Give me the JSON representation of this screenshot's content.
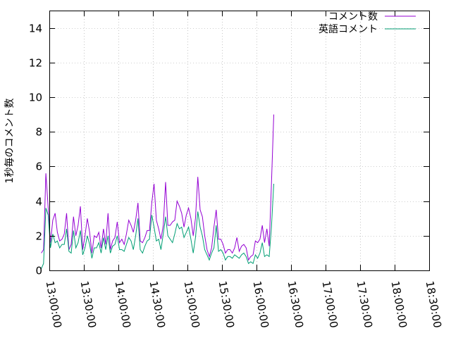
{
  "chart_data": {
    "type": "line",
    "ylabel": "1秒毎のコメント数",
    "xlabel": "",
    "title": "",
    "ylim": [
      0,
      15
    ],
    "yticks": [
      0,
      2,
      4,
      6,
      8,
      10,
      12,
      14
    ],
    "xlim": [
      "13:00:00",
      "18:30:00"
    ],
    "xticks": [
      "13:00:00",
      "13:30:00",
      "14:00:00",
      "14:30:00",
      "15:00:00",
      "15:30:00",
      "16:00:00",
      "16:30:00",
      "17:00:00",
      "17:30:00",
      "18:00:00",
      "18:30:00"
    ],
    "legend_position": "top-right",
    "series": [
      {
        "name": "コメント数",
        "color": "#9400d3",
        "points": [
          [
            "12:53:00",
            1.0
          ],
          [
            "12:55:00",
            1.2
          ],
          [
            "12:57:00",
            5.6
          ],
          [
            "12:59:00",
            3.6
          ],
          [
            "13:01:00",
            1.6
          ],
          [
            "13:03:00",
            2.9
          ],
          [
            "13:05:00",
            3.3
          ],
          [
            "13:07:00",
            2.2
          ],
          [
            "13:09:00",
            1.7
          ],
          [
            "13:11:00",
            1.8
          ],
          [
            "13:13:00",
            2.1
          ],
          [
            "13:15:00",
            3.3
          ],
          [
            "13:17:00",
            1.2
          ],
          [
            "13:19:00",
            1.5
          ],
          [
            "13:21:00",
            3.1
          ],
          [
            "13:23:00",
            2.0
          ],
          [
            "13:25:00",
            2.6
          ],
          [
            "13:27:00",
            3.7
          ],
          [
            "13:29:00",
            1.2
          ],
          [
            "13:31:00",
            2.0
          ],
          [
            "13:33:00",
            3.0
          ],
          [
            "13:35:00",
            2.2
          ],
          [
            "13:37:00",
            1.0
          ],
          [
            "13:39:00",
            2.0
          ],
          [
            "13:41:00",
            1.9
          ],
          [
            "13:43:00",
            2.2
          ],
          [
            "13:45:00",
            1.3
          ],
          [
            "13:47:00",
            2.4
          ],
          [
            "13:49:00",
            1.5
          ],
          [
            "13:51:00",
            3.3
          ],
          [
            "13:53:00",
            1.2
          ],
          [
            "13:55:00",
            1.7
          ],
          [
            "13:57:00",
            1.9
          ],
          [
            "13:59:00",
            2.8
          ],
          [
            "14:01:00",
            1.6
          ],
          [
            "14:03:00",
            1.8
          ],
          [
            "14:05:00",
            1.5
          ],
          [
            "14:07:00",
            2.1
          ],
          [
            "14:09:00",
            2.9
          ],
          [
            "14:11:00",
            2.6
          ],
          [
            "14:13:00",
            2.2
          ],
          [
            "14:15:00",
            2.9
          ],
          [
            "14:17:00",
            3.9
          ],
          [
            "14:19:00",
            1.7
          ],
          [
            "14:21:00",
            1.6
          ],
          [
            "14:23:00",
            1.9
          ],
          [
            "14:25:00",
            2.3
          ],
          [
            "14:27:00",
            2.3
          ],
          [
            "14:29:00",
            3.9
          ],
          [
            "14:31:00",
            5.0
          ],
          [
            "14:33:00",
            2.9
          ],
          [
            "14:35:00",
            2.4
          ],
          [
            "14:37:00",
            1.8
          ],
          [
            "14:39:00",
            2.6
          ],
          [
            "14:41:00",
            5.1
          ],
          [
            "14:43:00",
            2.6
          ],
          [
            "14:45:00",
            2.6
          ],
          [
            "14:47:00",
            2.8
          ],
          [
            "14:49:00",
            2.9
          ],
          [
            "14:51:00",
            4.0
          ],
          [
            "14:53:00",
            3.7
          ],
          [
            "14:55:00",
            3.3
          ],
          [
            "14:57:00",
            2.5
          ],
          [
            "14:59:00",
            3.2
          ],
          [
            "15:01:00",
            3.6
          ],
          [
            "15:03:00",
            3.0
          ],
          [
            "15:05:00",
            2.0
          ],
          [
            "15:07:00",
            3.0
          ],
          [
            "15:09:00",
            5.4
          ],
          [
            "15:11:00",
            3.5
          ],
          [
            "15:13:00",
            3.1
          ],
          [
            "15:15:00",
            2.0
          ],
          [
            "15:17:00",
            1.2
          ],
          [
            "15:19:00",
            0.8
          ],
          [
            "15:21:00",
            1.3
          ],
          [
            "15:23:00",
            2.5
          ],
          [
            "15:25:00",
            3.5
          ],
          [
            "15:27:00",
            1.8
          ],
          [
            "15:29:00",
            1.8
          ],
          [
            "15:31:00",
            1.5
          ],
          [
            "15:33:00",
            1.0
          ],
          [
            "15:35:00",
            1.2
          ],
          [
            "15:37:00",
            1.2
          ],
          [
            "15:39:00",
            1.0
          ],
          [
            "15:41:00",
            1.3
          ],
          [
            "15:43:00",
            1.9
          ],
          [
            "15:45:00",
            1.1
          ],
          [
            "15:47:00",
            1.4
          ],
          [
            "15:49:00",
            1.5
          ],
          [
            "15:51:00",
            1.3
          ],
          [
            "15:53:00",
            0.6
          ],
          [
            "15:55:00",
            0.8
          ],
          [
            "15:57:00",
            0.9
          ],
          [
            "15:59:00",
            1.7
          ],
          [
            "16:01:00",
            1.6
          ],
          [
            "16:03:00",
            1.8
          ],
          [
            "16:05:00",
            2.6
          ],
          [
            "16:07:00",
            1.6
          ],
          [
            "16:09:00",
            2.4
          ],
          [
            "16:11:00",
            1.4
          ],
          [
            "16:13:00",
            5.0
          ],
          [
            "16:15:00",
            9.0
          ]
        ]
      },
      {
        "name": "英語コメント",
        "color": "#009e73",
        "points": [
          [
            "12:53:00",
            0.1
          ],
          [
            "12:55:00",
            0.4
          ],
          [
            "12:57:00",
            3.6
          ],
          [
            "12:59:00",
            3.2
          ],
          [
            "13:01:00",
            1.3
          ],
          [
            "13:03:00",
            2.1
          ],
          [
            "13:05:00",
            1.6
          ],
          [
            "13:07:00",
            1.7
          ],
          [
            "13:09:00",
            1.3
          ],
          [
            "13:11:00",
            1.5
          ],
          [
            "13:13:00",
            1.5
          ],
          [
            "13:15:00",
            2.4
          ],
          [
            "13:17:00",
            1.1
          ],
          [
            "13:19:00",
            1.0
          ],
          [
            "13:21:00",
            2.3
          ],
          [
            "13:23:00",
            1.3
          ],
          [
            "13:25:00",
            1.6
          ],
          [
            "13:27:00",
            2.3
          ],
          [
            "13:29:00",
            0.9
          ],
          [
            "13:31:00",
            1.3
          ],
          [
            "13:33:00",
            2.0
          ],
          [
            "13:35:00",
            1.5
          ],
          [
            "13:37:00",
            0.7
          ],
          [
            "13:39:00",
            1.3
          ],
          [
            "13:41:00",
            1.3
          ],
          [
            "13:43:00",
            1.6
          ],
          [
            "13:45:00",
            1.0
          ],
          [
            "13:47:00",
            1.9
          ],
          [
            "13:49:00",
            1.2
          ],
          [
            "13:51:00",
            2.0
          ],
          [
            "13:53:00",
            1.0
          ],
          [
            "13:55:00",
            1.4
          ],
          [
            "13:57:00",
            1.5
          ],
          [
            "13:59:00",
            2.0
          ],
          [
            "14:01:00",
            1.2
          ],
          [
            "14:03:00",
            1.2
          ],
          [
            "14:05:00",
            1.1
          ],
          [
            "14:07:00",
            1.5
          ],
          [
            "14:09:00",
            1.9
          ],
          [
            "14:11:00",
            1.7
          ],
          [
            "14:13:00",
            1.2
          ],
          [
            "14:15:00",
            2.0
          ],
          [
            "14:17:00",
            3.0
          ],
          [
            "14:19:00",
            1.2
          ],
          [
            "14:21:00",
            1.0
          ],
          [
            "14:23:00",
            1.4
          ],
          [
            "14:25:00",
            1.7
          ],
          [
            "14:27:00",
            1.8
          ],
          [
            "14:29:00",
            3.2
          ],
          [
            "14:31:00",
            2.5
          ],
          [
            "14:33:00",
            1.7
          ],
          [
            "14:35:00",
            1.8
          ],
          [
            "14:37:00",
            1.2
          ],
          [
            "14:39:00",
            2.1
          ],
          [
            "14:41:00",
            3.1
          ],
          [
            "14:43:00",
            2.0
          ],
          [
            "14:45:00",
            1.8
          ],
          [
            "14:47:00",
            1.6
          ],
          [
            "14:49:00",
            2.1
          ],
          [
            "14:51:00",
            2.7
          ],
          [
            "14:53:00",
            2.4
          ],
          [
            "14:55:00",
            2.5
          ],
          [
            "14:57:00",
            1.9
          ],
          [
            "14:59:00",
            2.2
          ],
          [
            "15:01:00",
            2.5
          ],
          [
            "15:03:00",
            1.8
          ],
          [
            "15:05:00",
            1.0
          ],
          [
            "15:07:00",
            1.9
          ],
          [
            "15:09:00",
            3.4
          ],
          [
            "15:11:00",
            2.5
          ],
          [
            "15:13:00",
            2.0
          ],
          [
            "15:15:00",
            1.2
          ],
          [
            "15:17:00",
            0.9
          ],
          [
            "15:19:00",
            0.6
          ],
          [
            "15:21:00",
            1.0
          ],
          [
            "15:23:00",
            1.3
          ],
          [
            "15:25:00",
            2.6
          ],
          [
            "15:27:00",
            1.1
          ],
          [
            "15:29:00",
            1.2
          ],
          [
            "15:31:00",
            1.0
          ],
          [
            "15:33:00",
            0.6
          ],
          [
            "15:35:00",
            0.8
          ],
          [
            "15:37:00",
            0.8
          ],
          [
            "15:39:00",
            0.7
          ],
          [
            "15:41:00",
            0.9
          ],
          [
            "15:43:00",
            0.8
          ],
          [
            "15:45:00",
            0.7
          ],
          [
            "15:47:00",
            0.9
          ],
          [
            "15:49:00",
            1.0
          ],
          [
            "15:51:00",
            0.8
          ],
          [
            "15:53:00",
            0.4
          ],
          [
            "15:55:00",
            0.5
          ],
          [
            "15:57:00",
            0.4
          ],
          [
            "15:59:00",
            0.9
          ],
          [
            "16:01:00",
            0.7
          ],
          [
            "16:03:00",
            1.0
          ],
          [
            "16:05:00",
            1.6
          ],
          [
            "16:07:00",
            0.8
          ],
          [
            "16:09:00",
            0.9
          ],
          [
            "16:11:00",
            0.8
          ],
          [
            "16:13:00",
            2.5
          ],
          [
            "16:15:00",
            5.0
          ]
        ]
      }
    ]
  }
}
